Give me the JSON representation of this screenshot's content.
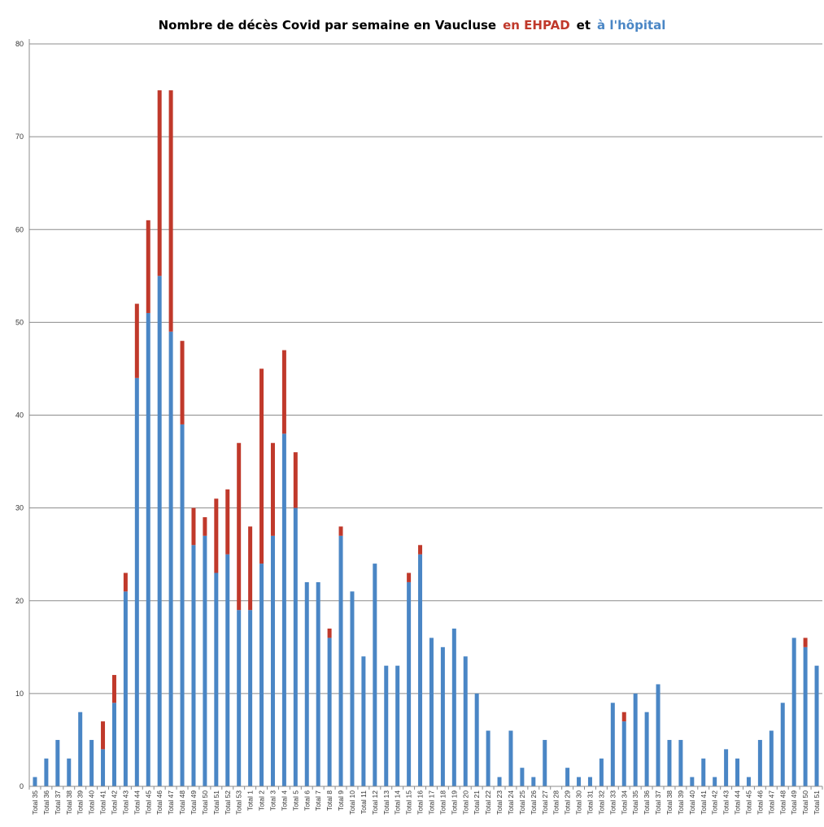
{
  "chart_data": {
    "type": "bar",
    "stacked": true,
    "title_parts": [
      {
        "text": "Nombre de décès Covid par semaine en Vaucluse",
        "color": "#000000"
      },
      {
        "text": "en EHPAD",
        "color": "#c0392b"
      },
      {
        "text": "et",
        "color": "#000000"
      },
      {
        "text": "à l'hôpital",
        "color": "#4a86c5"
      }
    ],
    "xlabel": "",
    "ylabel": "",
    "ylim": [
      0,
      80
    ],
    "yticks": [
      0,
      10,
      20,
      30,
      40,
      50,
      60,
      70,
      80
    ],
    "grid": true,
    "legend": "none",
    "categories": [
      "Total 35",
      "Total 36",
      "Total 37",
      "Total 38",
      "Total 39",
      "Total 40",
      "Total 41",
      "Total 42",
      "Total 43",
      "Total 44",
      "Total 45",
      "Total 46",
      "Total 47",
      "Total 48",
      "Total 49",
      "Total 50",
      "Total 51",
      "Total 52",
      "Total 53",
      "Total 1",
      "Total 2",
      "Total 3",
      "Total 4",
      "Total 5",
      "Total 6",
      "Total 7",
      "Total 8",
      "Total 9",
      "Total 10",
      "Total 11",
      "Total 12",
      "Total 13",
      "Total 14",
      "Total 15",
      "Total 16",
      "Total 17",
      "Total 18",
      "Total 19",
      "Total 20",
      "Total 21",
      "Total 22",
      "Total 23",
      "Total 24",
      "Total 25",
      "Total 26",
      "Total 27",
      "Total 28",
      "Total 29",
      "Total 30",
      "Total 31",
      "Total 32",
      "Total 33",
      "Total 34",
      "Total 35",
      "Total 36",
      "Total 37",
      "Total 38",
      "Total 39",
      "Total 40",
      "Total 41",
      "Total 42",
      "Total 43",
      "Total 44",
      "Total 45",
      "Total 46",
      "Total 47",
      "Total 48",
      "Total 49",
      "Total 50",
      "Total 51"
    ],
    "series": [
      {
        "color": "#4a86c5",
        "values": [
          1,
          3,
          5,
          3,
          8,
          5,
          4,
          9,
          21,
          44,
          51,
          55,
          49,
          39,
          26,
          27,
          23,
          25,
          19,
          19,
          24,
          27,
          38,
          30,
          22,
          22,
          16,
          27,
          21,
          14,
          24,
          13,
          13,
          22,
          25,
          16,
          15,
          17,
          14,
          10,
          6,
          1,
          6,
          2,
          1,
          5,
          0,
          2,
          1,
          1,
          3,
          9,
          7,
          10,
          8,
          11,
          5,
          5,
          1,
          3,
          1,
          4,
          3,
          1,
          5,
          6,
          9,
          16,
          15,
          13
        ]
      },
      {
        "color": "#c0392b",
        "values": [
          0,
          0,
          0,
          0,
          0,
          0,
          3,
          3,
          2,
          8,
          10,
          20,
          26,
          9,
          4,
          2,
          8,
          7,
          18,
          9,
          21,
          10,
          9,
          6,
          0,
          0,
          1,
          1,
          0,
          0,
          0,
          0,
          0,
          1,
          1,
          0,
          0,
          0,
          0,
          0,
          0,
          0,
          0,
          0,
          0,
          0,
          0,
          0,
          0,
          0,
          0,
          0,
          1,
          0,
          0,
          0,
          0,
          0,
          0,
          0,
          0,
          0,
          0,
          0,
          0,
          0,
          0,
          0,
          1,
          0
        ]
      }
    ]
  }
}
